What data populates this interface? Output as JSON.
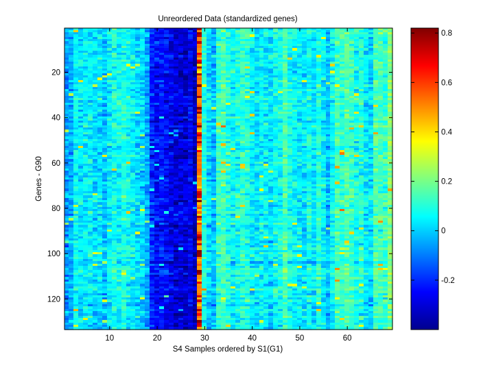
{
  "chart_data": {
    "type": "heatmap",
    "title": "Unreordered Data (standardized genes)",
    "xlabel": "S4 Samples ordered by S1(G1)",
    "ylabel": "Genes - G90",
    "n_cols": 69,
    "n_rows": 133,
    "xlim": [
      0.5,
      69.5
    ],
    "ylim": [
      0.5,
      133.5
    ],
    "xticks": [
      10,
      20,
      30,
      40,
      50,
      60
    ],
    "yticks": [
      20,
      40,
      60,
      80,
      100,
      120
    ],
    "colorbar": {
      "colormap": "jet",
      "clim": [
        -0.4,
        0.82
      ],
      "ticks": [
        0.8,
        0.6,
        0.4,
        0.2,
        0,
        -0.2
      ],
      "tick_labels": [
        "0.8",
        "0.6",
        "0.4",
        "0.2",
        "0",
        "-0.2"
      ]
    },
    "column_means": [
      -0.06,
      -0.04,
      0.06,
      0.03,
      0.04,
      0.05,
      0.02,
      0.03,
      -0.02,
      0.05,
      0.08,
      0.07,
      0.1,
      0.06,
      0.04,
      0.02,
      0.01,
      -0.05,
      -0.2,
      -0.24,
      -0.22,
      -0.24,
      -0.27,
      -0.3,
      -0.29,
      -0.3,
      -0.26,
      -0.34,
      0.5,
      0.1,
      0.02,
      -0.02,
      0.12,
      0.14,
      0.1,
      0.06,
      0.08,
      0.12,
      0.1,
      0.05,
      0.03,
      0.06,
      0.04,
      0.02,
      0.07,
      0.08,
      0.15,
      0.08,
      0.06,
      0.04,
      0.03,
      0.08,
      0.02,
      0.1,
      0.05,
      -0.02,
      0.06,
      0.14,
      0.12,
      0.16,
      0.12,
      0.08,
      0.1,
      0.04,
      0.02,
      0.16,
      0.14,
      0.12,
      0.22
    ]
  }
}
